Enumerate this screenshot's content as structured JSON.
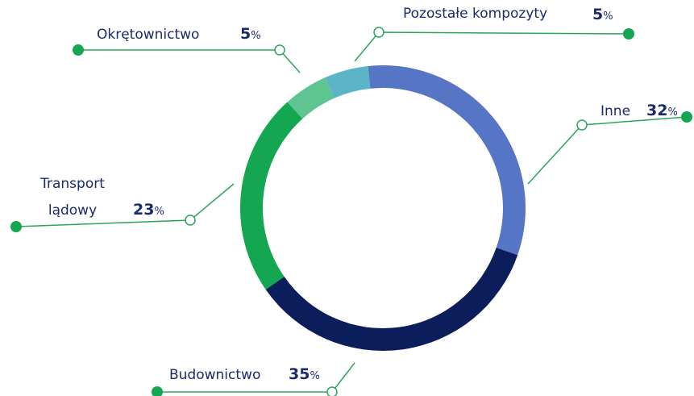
{
  "chart_data": {
    "type": "donut",
    "categories": [
      "Inne",
      "Budownictwo",
      "Transport lądowy",
      "Okrętownictwo",
      "Pozostałe kompozyty"
    ],
    "values": [
      32,
      35,
      23,
      5,
      5
    ],
    "value_labels": [
      "32%",
      "35%",
      "23%",
      "5%",
      "5%"
    ],
    "colors": [
      "#5775c5",
      "#0c1d5c",
      "#14a651",
      "#5ec592",
      "#5bb5c7"
    ]
  }
}
